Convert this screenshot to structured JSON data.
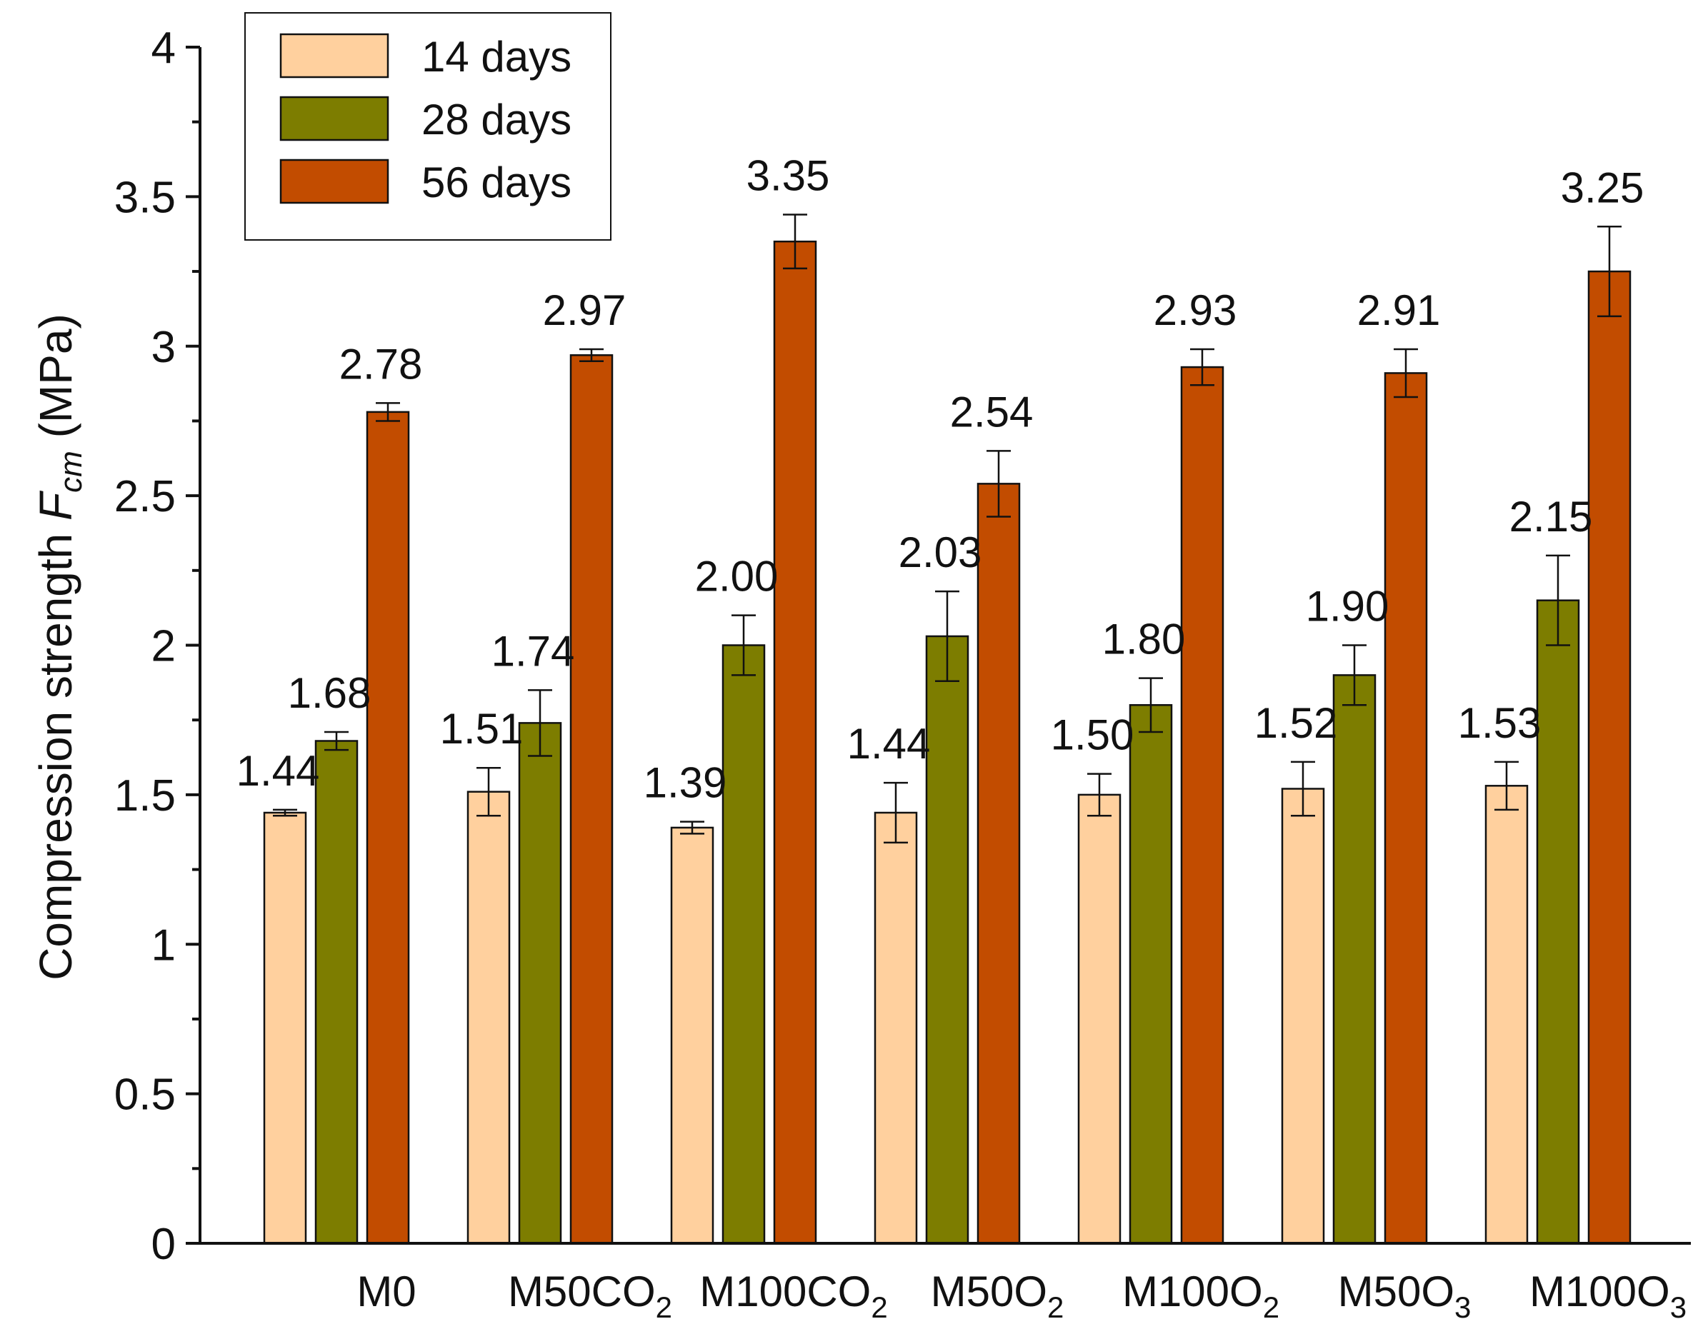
{
  "chart_data": {
    "type": "bar",
    "title": "",
    "xlabel": "",
    "ylabel": {
      "prefix": "Compression strength ",
      "symbol": "F",
      "subscript": "cm",
      "suffix": " (MPa)"
    },
    "ylim": [
      0,
      4
    ],
    "yticks": [
      0,
      0.5,
      1,
      1.5,
      2,
      2.5,
      3,
      3.5,
      4
    ],
    "ytick_labels": [
      "0",
      "0.5",
      "1",
      "1.5",
      "2",
      "2.5",
      "3",
      "3.5",
      "4"
    ],
    "grid": false,
    "legend_position": "top-left",
    "categories": [
      {
        "main": "M0",
        "sub": ""
      },
      {
        "main": "M50CO",
        "sub": "2"
      },
      {
        "main": "M100CO",
        "sub": "2"
      },
      {
        "main": "M50O",
        "sub": "2"
      },
      {
        "main": "M100O",
        "sub": "2"
      },
      {
        "main": "M50O",
        "sub": "3"
      },
      {
        "main": "M100O",
        "sub": "3"
      }
    ],
    "series": [
      {
        "name": "14 days",
        "color": "#FFD09E",
        "values": [
          1.44,
          1.51,
          1.39,
          1.44,
          1.5,
          1.52,
          1.53
        ],
        "labels": [
          "1.44",
          "1.51",
          "1.39",
          "1.44",
          "1.50",
          "1.52",
          "1.53"
        ],
        "errors": [
          0.01,
          0.08,
          0.02,
          0.1,
          0.07,
          0.09,
          0.08
        ]
      },
      {
        "name": "28 days",
        "color": "#7D7D00",
        "values": [
          1.68,
          1.74,
          2.0,
          2.03,
          1.8,
          1.9,
          2.15
        ],
        "labels": [
          "1.68",
          "1.74",
          "2.00",
          "2.03",
          "1.80",
          "1.90",
          "2.15"
        ],
        "errors": [
          0.03,
          0.11,
          0.1,
          0.15,
          0.09,
          0.1,
          0.15
        ]
      },
      {
        "name": "56 days",
        "color": "#C24C00",
        "values": [
          2.78,
          2.97,
          3.35,
          2.54,
          2.93,
          2.91,
          3.25
        ],
        "labels": [
          "2.78",
          "2.97",
          "3.35",
          "2.54",
          "2.93",
          "2.91",
          "3.25"
        ],
        "errors": [
          0.03,
          0.02,
          0.09,
          0.11,
          0.06,
          0.08,
          0.15
        ]
      }
    ]
  }
}
